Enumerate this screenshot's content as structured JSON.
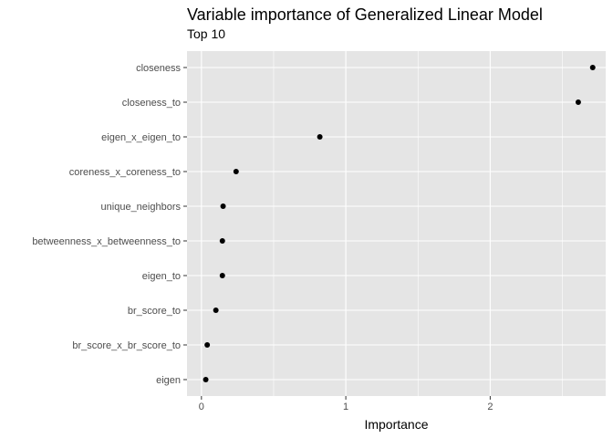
{
  "chart_data": {
    "type": "scatter",
    "title": "Variable importance of Generalized Linear Model",
    "subtitle": "Top 10",
    "xlabel": "Importance",
    "ylabel": "",
    "xlim": [
      -0.1,
      2.8
    ],
    "xticks": [
      0,
      1,
      2
    ],
    "grid": true,
    "legend": "none",
    "categories": [
      "closeness",
      "closeness_to",
      "eigen_x_eigen_to",
      "coreness_x_coreness_to",
      "unique_neighbors",
      "betweenness_x_betweenness_to",
      "eigen_to",
      "br_score_to",
      "br_score_x_br_score_to",
      "eigen"
    ],
    "values": [
      2.71,
      2.61,
      0.82,
      0.24,
      0.15,
      0.145,
      0.145,
      0.1,
      0.04,
      0.03
    ],
    "colors": {
      "panel": "#e5e5e5",
      "grid": "#ffffff",
      "point": "#000000",
      "tick_label": "#4d4d4d",
      "tick": "#333333"
    }
  }
}
